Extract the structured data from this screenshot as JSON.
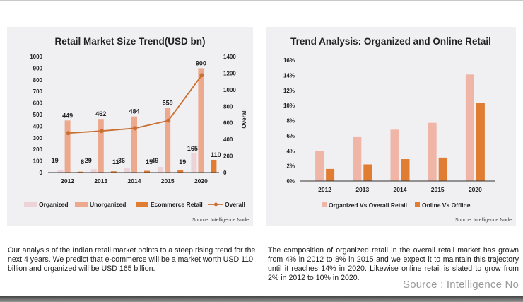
{
  "colors": {
    "organized": "#ecd3d8",
    "unorganized": "#eda98d",
    "ecommerce": "#e07d33",
    "overall_line": "#c96f32",
    "organized_share": "#efb6a8",
    "online_share": "#e07d33",
    "axis": "#333333"
  },
  "chart_data": [
    {
      "type": "bar",
      "title": "Retail Market Size Trend(USD bn)",
      "categories": [
        "2012",
        "2013",
        "2014",
        "2015",
        "2020"
      ],
      "series": [
        {
          "name": "Organized",
          "values": [
            19,
            29,
            36,
            49,
            165
          ],
          "axis": "left"
        },
        {
          "name": "Unorganized",
          "values": [
            449,
            462,
            484,
            559,
            900
          ],
          "axis": "left"
        },
        {
          "name": "Ecommerce Retail",
          "values": [
            8,
            11,
            15,
            19,
            110
          ],
          "axis": "left"
        },
        {
          "name": "Overall",
          "type": "line",
          "values": [
            476,
            502,
            535,
            627,
            1175
          ],
          "axis": "right"
        }
      ],
      "left_axis": {
        "ylim": [
          0,
          1000
        ],
        "ticks": [
          "0",
          "100",
          "200",
          "300",
          "400",
          "500",
          "600",
          "700",
          "800",
          "900",
          "1000"
        ]
      },
      "right_axis": {
        "label": "Overall",
        "ylim": [
          0,
          1400
        ],
        "ticks": [
          "0",
          "200",
          "400",
          "600",
          "800",
          "1000",
          "1200",
          "1400"
        ]
      },
      "data_labels": {
        "Organized": [
          "19",
          "29",
          "36",
          "49",
          "165"
        ],
        "Unorganized": [
          "449",
          "462",
          "484",
          "559",
          "900"
        ],
        "Ecommerce Retail": [
          "8",
          "11",
          "15",
          "19",
          "110"
        ]
      },
      "legend": [
        "Organized",
        "Unorganized",
        "Ecommerce Retail",
        "Overall"
      ],
      "legend_position": "bottom",
      "grid": false,
      "source": "Source: Intelligence Node"
    },
    {
      "type": "bar",
      "title": "Trend Analysis: Organized and Online Retail",
      "categories": [
        "2012",
        "2013",
        "2014",
        "2015",
        "2020"
      ],
      "series": [
        {
          "name": "Organized Vs Overall Retail",
          "values": [
            4.0,
            5.9,
            6.8,
            7.7,
            14.1
          ]
        },
        {
          "name": "Online Vs Offline",
          "values": [
            1.6,
            2.2,
            2.9,
            3.1,
            10.3
          ]
        }
      ],
      "ylim": [
        0,
        16
      ],
      "yticks": [
        "0%",
        "2%",
        "4%",
        "6%",
        "8%",
        "10%",
        "12%",
        "14%",
        "16%"
      ],
      "legend": [
        "Organized Vs Overall Retail",
        "Online Vs Offline"
      ],
      "legend_position": "bottom",
      "grid": false,
      "source": "Source: Intelligence Node"
    }
  ],
  "text": {
    "left_paragraph": "Our analysis of the Indian retail market points to a steep rising trend for the next 4 years. We predict that e-commerce will be a market worth USD 110 billion and organized will be USD 165 billion.",
    "right_paragraph": "The composition of organized retail in the overall retail market has grown from 4% in 2012 to 8% in 2015 and we expect it to maintain this trajectory until it reaches 14% in 2020. Likewise online retail is slated to grow from 2% in 2012 to 10% in 2020.",
    "source_overlay": "Source : Intelligence No"
  }
}
